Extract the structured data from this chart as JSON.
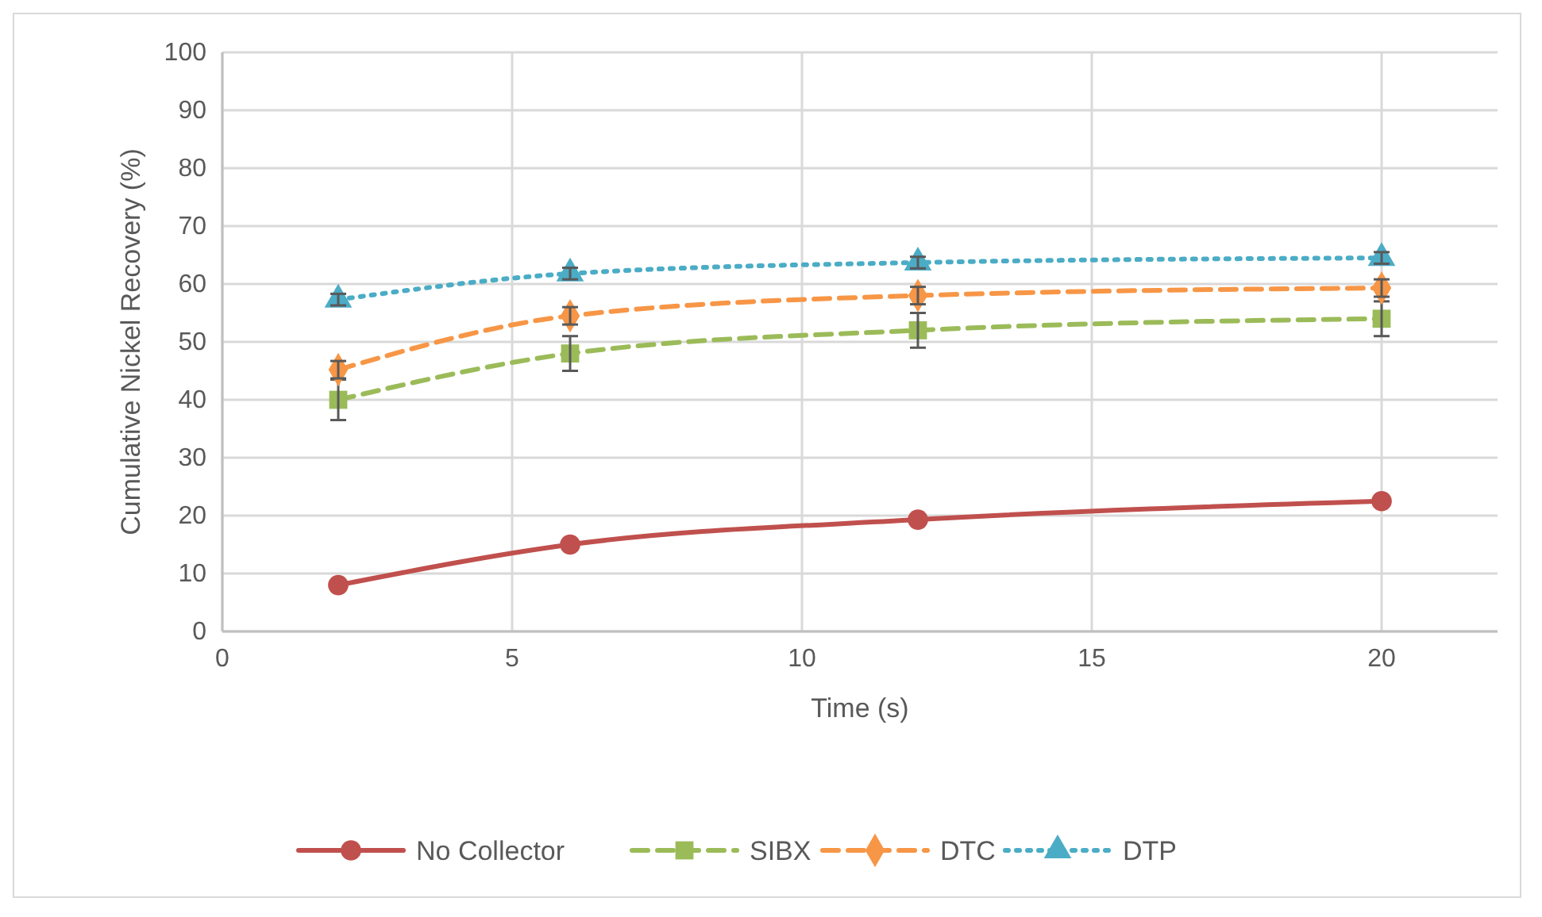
{
  "chart_data": {
    "type": "line",
    "xlabel": "Time (s)",
    "ylabel": "Cumulative Nickel Recovery (%)",
    "x": [
      2,
      6,
      12,
      20
    ],
    "xlim": [
      0,
      22
    ],
    "xticks": [
      0,
      5,
      10,
      15,
      20
    ],
    "ylim": [
      0,
      100
    ],
    "yticks": [
      0,
      10,
      20,
      30,
      40,
      50,
      60,
      70,
      80,
      90,
      100
    ],
    "grid": true,
    "legend": "bottom",
    "series": [
      {
        "name": "No Collector",
        "color": "#c0504d",
        "values": [
          8,
          15,
          19.3,
          22.5
        ],
        "marker": "circle",
        "line_style": "solid"
      },
      {
        "name": "SIBX",
        "color": "#9bbb59",
        "values": [
          40,
          48,
          52,
          54
        ],
        "errors": [
          3.5,
          3,
          3,
          3
        ],
        "marker": "square",
        "line_style": "dashed"
      },
      {
        "name": "DTC",
        "color": "#f79646",
        "values": [
          45.2,
          54.5,
          58,
          59.3
        ],
        "errors": [
          1.5,
          1.5,
          1.5,
          1.5
        ],
        "marker": "diamond",
        "line_style": "dashed"
      },
      {
        "name": "DTP",
        "color": "#4bacc6",
        "values": [
          57.3,
          61.8,
          63.7,
          64.5
        ],
        "errors": [
          1,
          1,
          1,
          1
        ],
        "marker": "triangle",
        "line_style": "dotted"
      }
    ]
  }
}
